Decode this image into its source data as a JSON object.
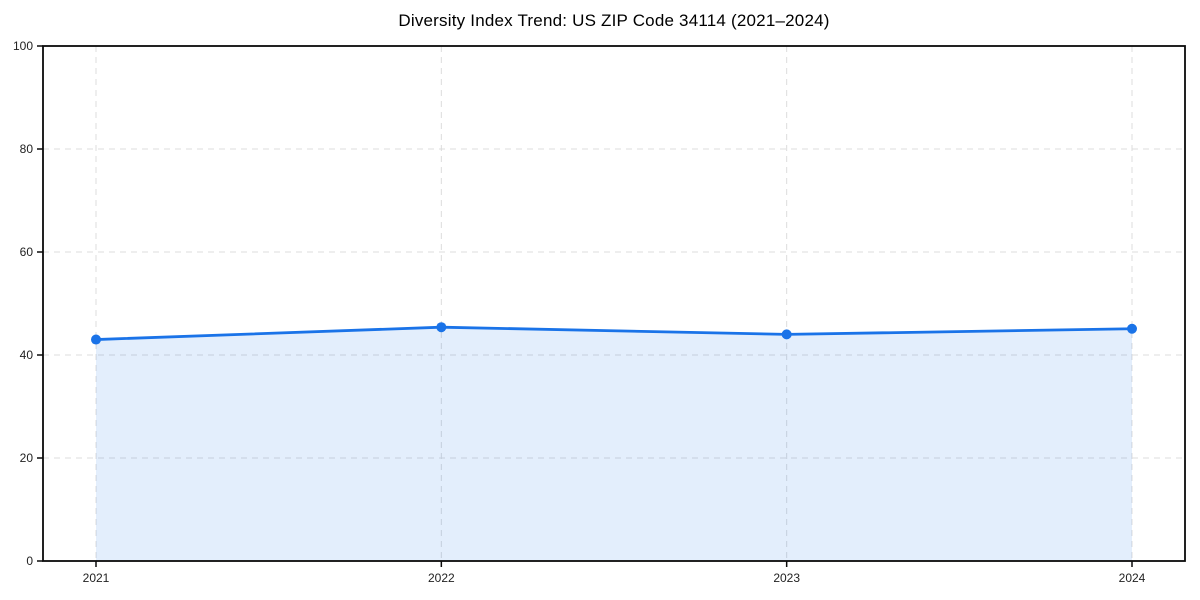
{
  "page": {
    "background": "#ffffff"
  },
  "chart_data": {
    "type": "line",
    "title": "Diversity Index Trend: US ZIP Code 34114 (2021–2024)",
    "categories": [
      "2021",
      "2022",
      "2023",
      "2024"
    ],
    "series": [
      {
        "name": "Diversity Index",
        "values": [
          43,
          45.4,
          44,
          45.1
        ]
      }
    ],
    "xlabel": "",
    "ylabel": "",
    "ylim": [
      0,
      100
    ],
    "yticks": [
      0,
      20,
      40,
      60,
      80,
      100
    ],
    "grid": true,
    "grid_style": "dashed",
    "legend_position": "none",
    "area_fill": true,
    "marker": "circle",
    "colors": {
      "line": "#1a73e8",
      "marker": "#1a73e8",
      "area": "rgba(26,115,232,0.12)",
      "grid": "#dcdcdc",
      "spine": "#0a0a0a",
      "title_text": "#000000",
      "tick_text": "#222222"
    }
  }
}
